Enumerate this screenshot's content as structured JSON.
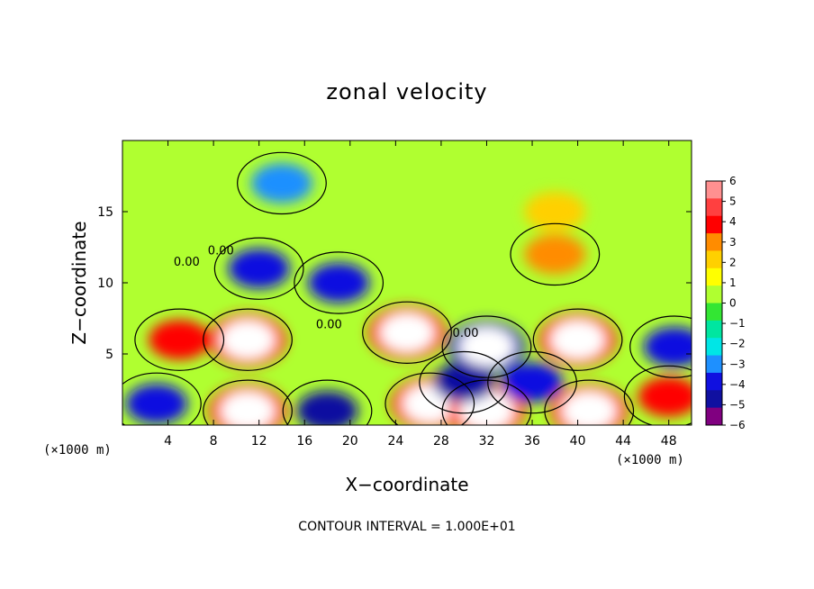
{
  "chart_data": {
    "type": "heatmap",
    "title": "zonal velocity",
    "xlabel": "X−coordinate",
    "ylabel": "Z−coordinate",
    "x_unit_label": "(×1000 m)",
    "x_ticks": [
      4,
      8,
      12,
      16,
      20,
      24,
      28,
      32,
      36,
      40,
      44,
      48
    ],
    "y_ticks": [
      5,
      10,
      15
    ],
    "xlim": [
      0,
      50
    ],
    "ylim": [
      0,
      20
    ],
    "colorbar": {
      "ticks": [
        6,
        5,
        4,
        3,
        2,
        1,
        0,
        -1,
        -2,
        -3,
        -4,
        -5,
        -6
      ],
      "labels": [
        "6",
        "5",
        "4",
        "3",
        "2",
        "1",
        "0",
        "−1",
        "−2",
        "−3",
        "−4",
        "−5",
        "−6"
      ],
      "colors": [
        "#ff9090",
        "#ff4040",
        "#ff0000",
        "#ff8c00",
        "#ffd000",
        "#ffff00",
        "#b0ff30",
        "#33e633",
        "#00e6a0",
        "#00e6e6",
        "#1e90ff",
        "#1010e0",
        "#1010a0",
        "#800080"
      ]
    },
    "contour_labels": [
      "0.00",
      "0.00",
      "0.00",
      "0.00"
    ],
    "contour_interval_text": "CONTOUR INTERVAL = 1.000E+01",
    "features": [
      {
        "x": 14,
        "z": 17,
        "value": -3
      },
      {
        "x": 12,
        "z": 11,
        "value": -4
      },
      {
        "x": 19,
        "z": 10,
        "value": -4
      },
      {
        "x": 38,
        "z": 12,
        "value": 3
      },
      {
        "x": 38,
        "z": 15,
        "value": 2
      },
      {
        "x": 5,
        "z": 6,
        "value": 4
      },
      {
        "x": 11,
        "z": 6,
        "value": 7
      },
      {
        "x": 25,
        "z": 6.5,
        "value": 7
      },
      {
        "x": 32,
        "z": 5.5,
        "value": -7
      },
      {
        "x": 40,
        "z": 6,
        "value": 7
      },
      {
        "x": 11,
        "z": 1,
        "value": 7
      },
      {
        "x": 27,
        "z": 1.5,
        "value": 7
      },
      {
        "x": 32,
        "z": 1,
        "value": 7
      },
      {
        "x": 41,
        "z": 1,
        "value": 7
      },
      {
        "x": 3,
        "z": 1.5,
        "value": -4
      },
      {
        "x": 48.5,
        "z": 5.5,
        "value": -4
      },
      {
        "x": 48,
        "z": 2,
        "value": 4
      },
      {
        "x": 18,
        "z": 1,
        "value": -5
      },
      {
        "x": 30,
        "z": 3,
        "value": -5
      },
      {
        "x": 36,
        "z": 3,
        "value": -4
      }
    ]
  }
}
